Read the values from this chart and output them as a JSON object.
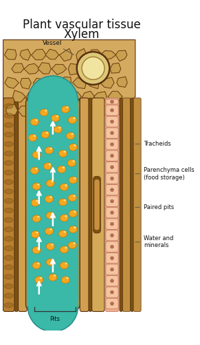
{
  "title_line1": "Plant vascular tissue",
  "title_line2": "Xylem",
  "title_fontsize": 12,
  "bg_color": "#ffffff",
  "label_vessel": "Vessel",
  "label_tracheids": "Tracheids",
  "label_parenchyma": "Parenchyma cells\n(food storage)",
  "label_paired_pits": "Paired pits",
  "label_water": "Water and\nminerals",
  "label_pits": "Pits",
  "teal_color": "#3ab8a8",
  "dark_brown": "#5a3010",
  "mid_brown": "#8a5820",
  "tan_light": "#d4aa60",
  "tan_mid": "#c09040",
  "cell_fill": "#c8a050",
  "cell_edge": "#6a3808",
  "vessel_fill": "#e8d090",
  "vessel_inner": "#f5ecc0",
  "parenchyma_fill": "#f5c4a0",
  "parenchyma_edge": "#c07858",
  "parenchyma_dot": "#b06848",
  "orange_ball": "#f5a820",
  "orange_edge": "#d07800",
  "orange_shine": "#ffe888",
  "left_col1": "#c09040",
  "left_col2": "#a07030",
  "right_col1": "#c09040",
  "right_col2": "#a07030",
  "right_col3": "#c09040",
  "label_fontsize": 6.0,
  "vessel_label_fontsize": 6.5,
  "line_color": "#555555"
}
